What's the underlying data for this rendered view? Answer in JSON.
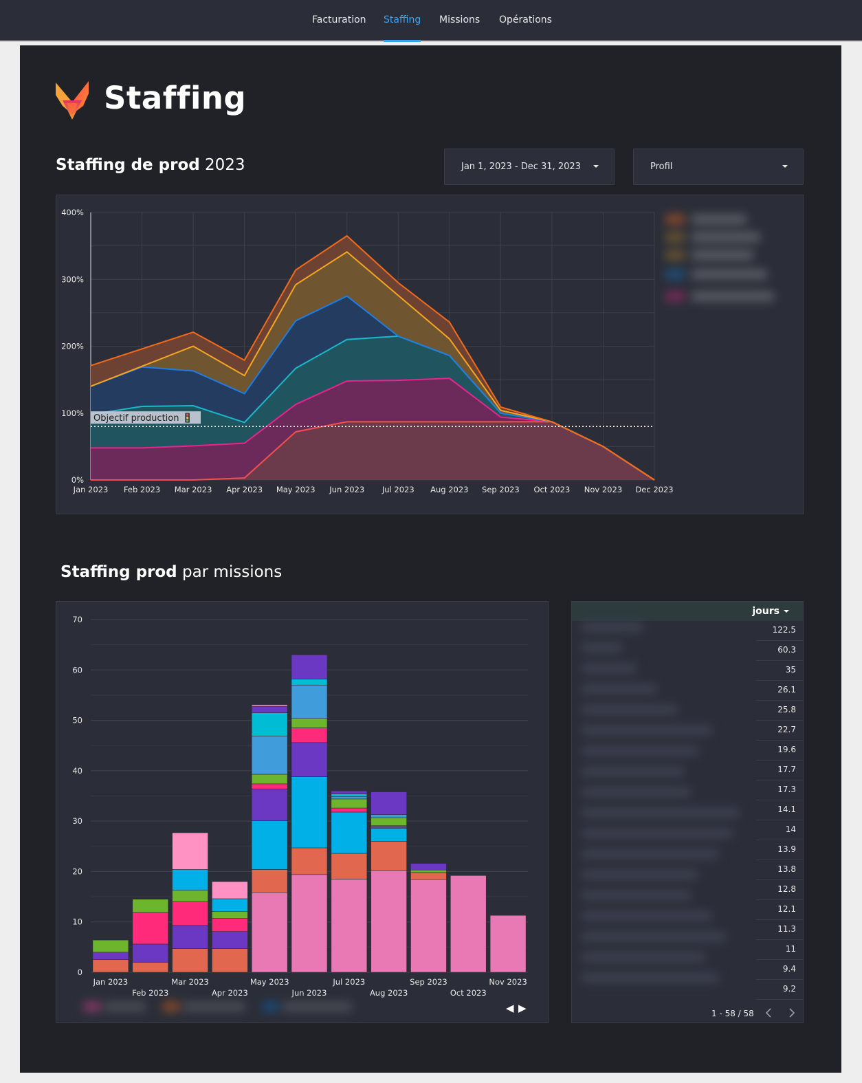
{
  "nav": {
    "tabs": [
      {
        "label": "Facturation",
        "active": false
      },
      {
        "label": "Staffing",
        "active": true
      },
      {
        "label": "Missions",
        "active": false
      },
      {
        "label": "Opérations",
        "active": false
      }
    ]
  },
  "header": {
    "title": "Staffing"
  },
  "section1": {
    "title_bold": "Staffing de prod",
    "title_rest": "2023"
  },
  "filters": {
    "date_range": "Jan 1, 2023 - Dec 31, 2023",
    "profile": "Profil"
  },
  "section2": {
    "title_bold": "Staffing prod",
    "title_rest": "par missions"
  },
  "table": {
    "header": "jours",
    "values": [
      "122.5",
      "60.3",
      "35",
      "26.1",
      "25.8",
      "22.7",
      "19.6",
      "17.7",
      "17.3",
      "14.1",
      "14",
      "13.9",
      "13.8",
      "12.8",
      "12.1",
      "11.3",
      "11",
      "9.4",
      "9.2"
    ],
    "pagination": "1 - 58 / 58"
  },
  "colors": {
    "accent": "#3ba2f0",
    "background": "#202228",
    "panel": "#2b2e38"
  },
  "chart_data": [
    {
      "type": "area",
      "stacked": true,
      "categories": [
        "Jan 2023",
        "Feb 2023",
        "Mar 2023",
        "Apr 2023",
        "May 2023",
        "Jun 2023",
        "Jul 2023",
        "Aug 2023",
        "Sep 2023",
        "Oct 2023",
        "Nov 2023",
        "Dec 2023"
      ],
      "y_ticks": [
        "0%",
        "100%",
        "200%",
        "300%",
        "400%"
      ],
      "ylim": [
        0,
        400
      ],
      "series": [
        {
          "color": "#f2504f",
          "fill": "#6c3b4b",
          "values": [
            0,
            0,
            0,
            3,
            72,
            87,
            87,
            87,
            87,
            87,
            50,
            0
          ]
        },
        {
          "color": "#e9248f",
          "fill": "#6c2a5a",
          "values": [
            48,
            48,
            51,
            52,
            41,
            61,
            62,
            65,
            7,
            0,
            0,
            0
          ]
        },
        {
          "color": "#1bb8cc",
          "fill": "#20545e",
          "values": [
            50,
            62,
            60,
            31,
            54,
            62,
            66,
            34,
            6,
            0,
            0,
            0
          ]
        },
        {
          "color": "#1f7de3",
          "fill": "#243c60",
          "values": [
            42,
            59,
            52,
            43,
            71,
            65,
            0,
            0,
            0,
            0,
            0,
            0
          ]
        },
        {
          "color": "#f5a623",
          "fill": "#6f5530",
          "values": [
            0,
            1,
            37,
            27,
            54,
            66,
            61,
            25,
            4,
            0,
            0,
            0
          ]
        },
        {
          "color": "#f26b1d",
          "fill": "#6d4233",
          "values": [
            31,
            26,
            21,
            23,
            22,
            24,
            19,
            25,
            5,
            0,
            0,
            0
          ]
        }
      ],
      "reference_line": {
        "label": "Objectif production 🚦",
        "value": 80
      }
    },
    {
      "type": "bar",
      "stacked": true,
      "categories": [
        "Jan 2023",
        "Feb 2023",
        "Mar 2023",
        "Apr 2023",
        "May 2023",
        "Jun 2023",
        "Jul 2023",
        "Aug 2023",
        "Sep 2023",
        "Oct 2023",
        "Nov 2023"
      ],
      "y_ticks": [
        "0",
        "10",
        "20",
        "30",
        "40",
        "50",
        "60",
        "70"
      ],
      "ylim": [
        0,
        70
      ],
      "series": [
        {
          "color": "#e879b4",
          "values": [
            0,
            0,
            0,
            0,
            15.8,
            19.4,
            18.5,
            20.2,
            18.4,
            19.2,
            11.3
          ]
        },
        {
          "color": "#e1674f",
          "values": [
            2.5,
            2.0,
            4.7,
            4.7,
            4.6,
            5.3,
            5.1,
            5.8,
            1.4,
            0,
            0
          ]
        },
        {
          "color": "#6a38c2",
          "values": [
            1.5,
            3.6,
            4.6,
            3.4,
            0,
            0,
            0,
            0,
            0,
            0,
            0
          ]
        },
        {
          "color": "#ff2b7a",
          "values": [
            0,
            6.3,
            4.7,
            2.6,
            0,
            0,
            0,
            0,
            0,
            0,
            0
          ]
        },
        {
          "color": "#6cb52d",
          "values": [
            2.4,
            2.6,
            2.3,
            1.4,
            0,
            0,
            0,
            0,
            0,
            0,
            0
          ]
        },
        {
          "color": "#00b0e6",
          "values": [
            0,
            0,
            4.1,
            2.5,
            9.7,
            14.1,
            8.2,
            2.6,
            0,
            0,
            0
          ]
        },
        {
          "color": "#6a38c2",
          "values": [
            0,
            0,
            0,
            0,
            6.3,
            6.8,
            0,
            0.3,
            0,
            0,
            0
          ]
        },
        {
          "color": "#ff2b7a",
          "values": [
            0,
            0,
            0,
            0,
            1.0,
            2.9,
            0.8,
            0.2,
            0,
            0,
            0
          ]
        },
        {
          "color": "#6cb52d",
          "values": [
            0,
            0,
            0,
            0,
            1.9,
            1.9,
            1.8,
            1.6,
            0.5,
            0,
            0
          ]
        },
        {
          "color": "#419cdb",
          "values": [
            0,
            0,
            0,
            0,
            7.6,
            6.6,
            0.5,
            0.6,
            0,
            0,
            0
          ]
        },
        {
          "color": "#ff92c2",
          "values": [
            0,
            0,
            7.3,
            3.4,
            0,
            0,
            0,
            0,
            0,
            0,
            0
          ]
        },
        {
          "color": "#00bdd6",
          "values": [
            0,
            0,
            0,
            0,
            4.6,
            1.2,
            0.5,
            0,
            0,
            0,
            0
          ]
        },
        {
          "color": "#6a38c2",
          "values": [
            0,
            0,
            0,
            0,
            1.3,
            4.8,
            0.6,
            4.5,
            1.3,
            0,
            0
          ]
        },
        {
          "color": "#ff92c2",
          "values": [
            0,
            0,
            0,
            0,
            0.3,
            0,
            0,
            0,
            0,
            0,
            0
          ]
        }
      ]
    }
  ]
}
